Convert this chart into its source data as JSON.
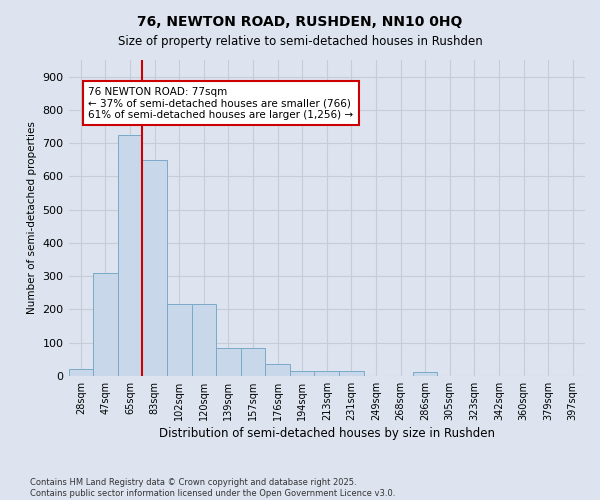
{
  "title1": "76, NEWTON ROAD, RUSHDEN, NN10 0HQ",
  "title2": "Size of property relative to semi-detached houses in Rushden",
  "xlabel": "Distribution of semi-detached houses by size in Rushden",
  "ylabel": "Number of semi-detached properties",
  "categories": [
    "28sqm",
    "47sqm",
    "65sqm",
    "83sqm",
    "102sqm",
    "120sqm",
    "139sqm",
    "157sqm",
    "176sqm",
    "194sqm",
    "213sqm",
    "231sqm",
    "249sqm",
    "268sqm",
    "286sqm",
    "305sqm",
    "323sqm",
    "342sqm",
    "360sqm",
    "379sqm",
    "397sqm"
  ],
  "values": [
    20,
    310,
    725,
    650,
    215,
    215,
    85,
    85,
    35,
    15,
    15,
    15,
    0,
    0,
    10,
    0,
    0,
    0,
    0,
    0,
    0
  ],
  "bar_color": "#c8d8ea",
  "bar_edge_color": "#7aaac8",
  "grid_color": "#c5cdd8",
  "background_color": "#dde4ef",
  "vline_color": "#cc0000",
  "vline_x": 2.5,
  "annotation_text": "76 NEWTON ROAD: 77sqm\n← 37% of semi-detached houses are smaller (766)\n61% of semi-detached houses are larger (1,256) →",
  "annotation_box_color": "#ffffff",
  "annotation_box_edge": "#cc0000",
  "footnote": "Contains HM Land Registry data © Crown copyright and database right 2025.\nContains public sector information licensed under the Open Government Licence v3.0.",
  "ylim": [
    0,
    950
  ],
  "yticks": [
    0,
    100,
    200,
    300,
    400,
    500,
    600,
    700,
    800,
    900
  ]
}
